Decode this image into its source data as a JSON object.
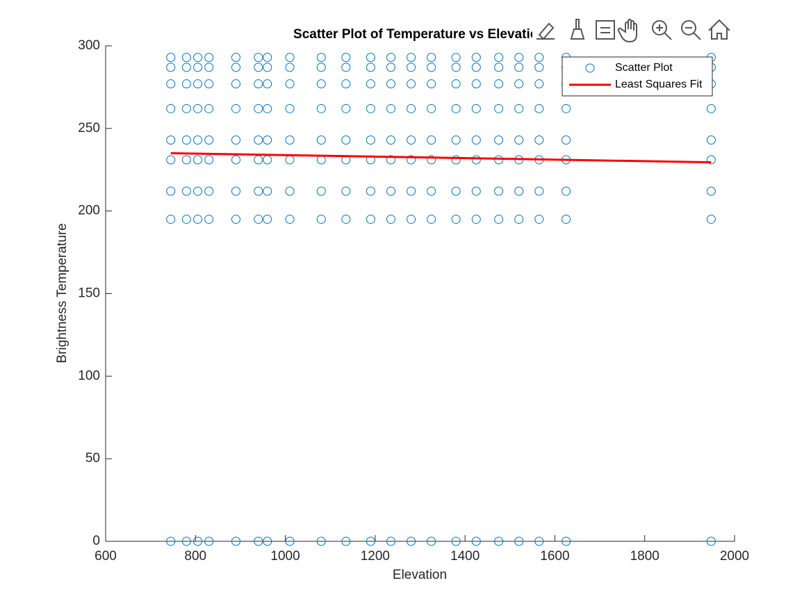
{
  "chart_data": {
    "type": "scatter",
    "title": "Scatter Plot of Temperature vs Elevation",
    "x_label": "Elevation",
    "y_label": "Brightness Temperature",
    "xlim": [
      600,
      2000
    ],
    "ylim": [
      0,
      300
    ],
    "xticks": [
      600,
      800,
      1000,
      1200,
      1400,
      1600,
      1800,
      2000
    ],
    "yticks": [
      0,
      50,
      100,
      150,
      200,
      250,
      300
    ],
    "legend": "upper-right",
    "series": [
      {
        "name": "Scatter Plot",
        "kind": "scatter",
        "color": "#0072bd",
        "x": [
          745,
          745,
          745,
          745,
          745,
          745,
          745,
          745,
          745,
          780,
          780,
          780,
          780,
          780,
          780,
          780,
          780,
          780,
          805,
          805,
          805,
          805,
          805,
          805,
          805,
          805,
          805,
          830,
          830,
          830,
          830,
          830,
          830,
          830,
          830,
          830,
          890,
          890,
          890,
          890,
          890,
          890,
          890,
          890,
          890,
          940,
          940,
          940,
          940,
          940,
          940,
          940,
          940,
          940,
          960,
          960,
          960,
          960,
          960,
          960,
          960,
          960,
          960,
          1010,
          1010,
          1010,
          1010,
          1010,
          1010,
          1010,
          1010,
          1010,
          1080,
          1080,
          1080,
          1080,
          1080,
          1080,
          1080,
          1080,
          1080,
          1135,
          1135,
          1135,
          1135,
          1135,
          1135,
          1135,
          1135,
          1135,
          1190,
          1190,
          1190,
          1190,
          1190,
          1190,
          1190,
          1190,
          1190,
          1235,
          1235,
          1235,
          1235,
          1235,
          1235,
          1235,
          1235,
          1235,
          1280,
          1280,
          1280,
          1280,
          1280,
          1280,
          1280,
          1280,
          1280,
          1325,
          1325,
          1325,
          1325,
          1325,
          1325,
          1325,
          1325,
          1325,
          1380,
          1380,
          1380,
          1380,
          1380,
          1380,
          1380,
          1380,
          1380,
          1425,
          1425,
          1425,
          1425,
          1425,
          1425,
          1425,
          1425,
          1425,
          1475,
          1475,
          1475,
          1475,
          1475,
          1475,
          1475,
          1475,
          1475,
          1520,
          1520,
          1520,
          1520,
          1520,
          1520,
          1520,
          1520,
          1520,
          1565,
          1565,
          1565,
          1565,
          1565,
          1565,
          1565,
          1565,
          1565,
          1625,
          1625,
          1625,
          1625,
          1625,
          1625,
          1625,
          1625,
          1625,
          1948,
          1948,
          1948,
          1948,
          1948,
          1948,
          1948,
          1948,
          1948
        ],
        "values": [
          0,
          195,
          212,
          231,
          243,
          262,
          277,
          287,
          293,
          0,
          195,
          212,
          231,
          243,
          262,
          277,
          287,
          293,
          0,
          195,
          212,
          231,
          243,
          262,
          277,
          287,
          293,
          0,
          195,
          212,
          231,
          243,
          262,
          277,
          287,
          293,
          0,
          195,
          212,
          231,
          243,
          262,
          277,
          287,
          293,
          0,
          195,
          212,
          231,
          243,
          262,
          277,
          287,
          293,
          0,
          195,
          212,
          231,
          243,
          262,
          277,
          287,
          293,
          0,
          195,
          212,
          231,
          243,
          262,
          277,
          287,
          293,
          0,
          195,
          212,
          231,
          243,
          262,
          277,
          287,
          293,
          0,
          195,
          212,
          231,
          243,
          262,
          277,
          287,
          293,
          0,
          195,
          212,
          231,
          243,
          262,
          277,
          287,
          293,
          0,
          195,
          212,
          231,
          243,
          262,
          277,
          287,
          293,
          0,
          195,
          212,
          231,
          243,
          262,
          277,
          287,
          293,
          0,
          195,
          212,
          231,
          243,
          262,
          277,
          287,
          293,
          0,
          195,
          212,
          231,
          243,
          262,
          277,
          287,
          293,
          0,
          195,
          212,
          231,
          243,
          262,
          277,
          287,
          293,
          0,
          195,
          212,
          231,
          243,
          262,
          277,
          287,
          293,
          0,
          195,
          212,
          231,
          243,
          262,
          277,
          287,
          293,
          0,
          195,
          212,
          231,
          243,
          262,
          277,
          287,
          293,
          0,
          195,
          212,
          231,
          243,
          262,
          277,
          287,
          293,
          0,
          195,
          212,
          231,
          243,
          262,
          277,
          287,
          293
        ]
      },
      {
        "name": "Least Squares Fit",
        "kind": "line",
        "color": "#ff0000",
        "x": [
          745,
          1948
        ],
        "values": [
          235,
          229.5
        ]
      }
    ]
  }
}
